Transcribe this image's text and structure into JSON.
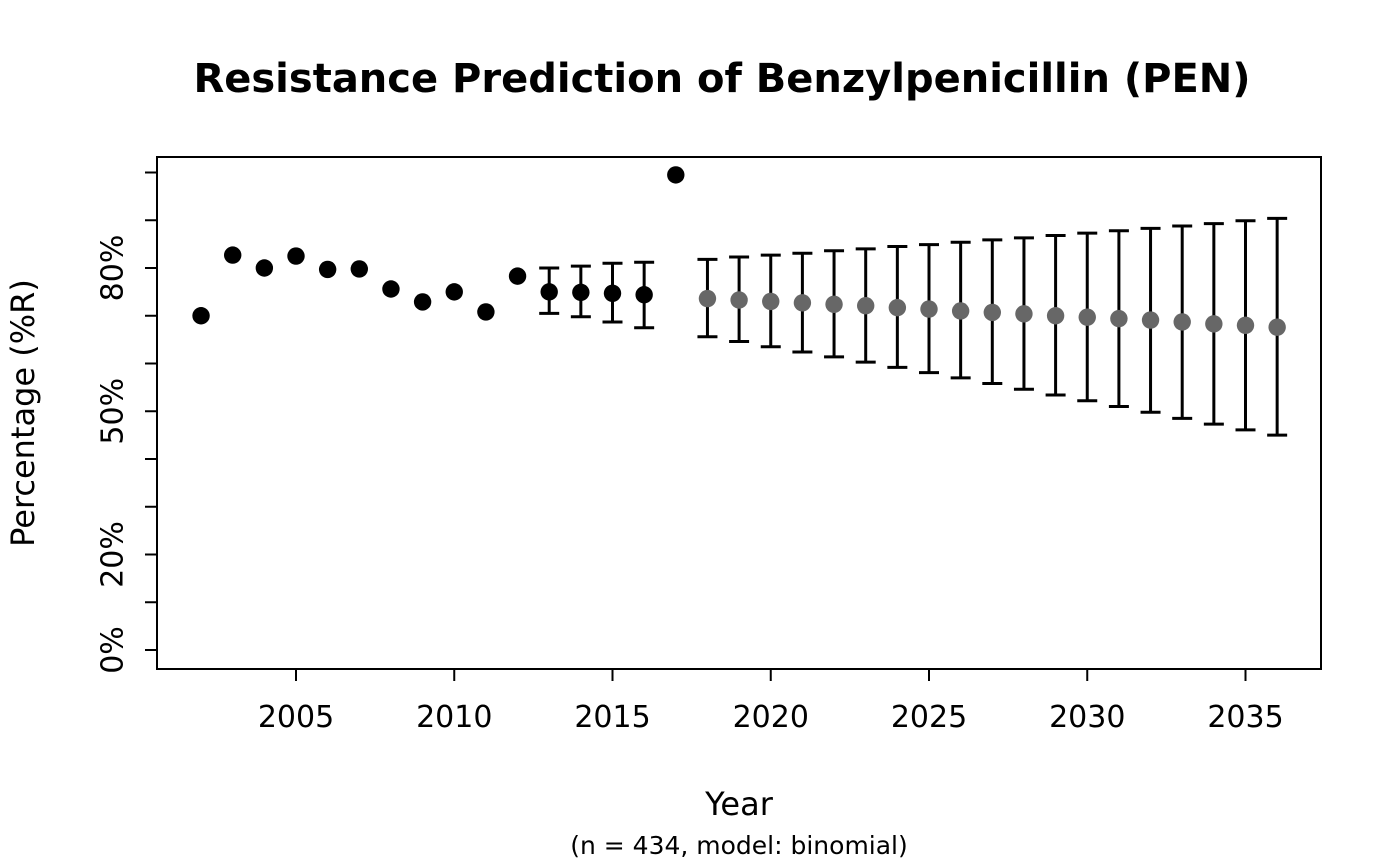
{
  "chart_data": {
    "type": "scatter",
    "title": "Resistance Prediction of Benzylpenicillin (PEN)",
    "xlabel": "Year",
    "x_sub_label": "(n = 434, model: binomial)",
    "ylabel": "Percentage (%R)",
    "xlim": [
      2000.6,
      2037.4
    ],
    "ylim": [
      -4,
      104
    ],
    "grid": false,
    "legend_position": "none",
    "x_ticks": [
      2005,
      2010,
      2015,
      2020,
      2025,
      2030,
      2035
    ],
    "y_minor_tick_step": 10,
    "y_labeled_ticks": [
      {
        "value": 0,
        "label": "0%"
      },
      {
        "value": 20,
        "label": "20%"
      },
      {
        "value": 50,
        "label": "50%"
      },
      {
        "value": 80,
        "label": "80%"
      }
    ],
    "colors": {
      "observed_point": "#000000",
      "predicted_point": "#676767",
      "error_bar": "#000000",
      "axis": "#000000",
      "background": "#ffffff"
    },
    "series": [
      {
        "name": "observed",
        "role": "history",
        "color": "#000000",
        "points": [
          {
            "year": 2002,
            "value": 70.0
          },
          {
            "year": 2003,
            "value": 82.7
          },
          {
            "year": 2004,
            "value": 80.0
          },
          {
            "year": 2005,
            "value": 82.5
          },
          {
            "year": 2006,
            "value": 79.7
          },
          {
            "year": 2007,
            "value": 79.8
          },
          {
            "year": 2008,
            "value": 75.6
          },
          {
            "year": 2009,
            "value": 72.9
          },
          {
            "year": 2010,
            "value": 75.0
          },
          {
            "year": 2011,
            "value": 70.8
          },
          {
            "year": 2012,
            "value": 78.3
          },
          {
            "year": 2013,
            "value": 75.0,
            "ci_low": 70.5,
            "ci_high": 80.0
          },
          {
            "year": 2014,
            "value": 74.9,
            "ci_low": 69.8,
            "ci_high": 80.4
          },
          {
            "year": 2015,
            "value": 74.7,
            "ci_low": 68.7,
            "ci_high": 81.0
          },
          {
            "year": 2016,
            "value": 74.4,
            "ci_low": 67.5,
            "ci_high": 81.2
          },
          {
            "year": 2017,
            "value": 99.5
          }
        ]
      },
      {
        "name": "predicted",
        "role": "forecast",
        "color": "#676767",
        "points": [
          {
            "year": 2018,
            "value": 73.6,
            "ci_low": 65.6,
            "ci_high": 81.8
          },
          {
            "year": 2019,
            "value": 73.3,
            "ci_low": 64.6,
            "ci_high": 82.3
          },
          {
            "year": 2020,
            "value": 73.0,
            "ci_low": 63.5,
            "ci_high": 82.7
          },
          {
            "year": 2021,
            "value": 72.7,
            "ci_low": 62.4,
            "ci_high": 83.1
          },
          {
            "year": 2022,
            "value": 72.4,
            "ci_low": 61.4,
            "ci_high": 83.6
          },
          {
            "year": 2023,
            "value": 72.1,
            "ci_low": 60.3,
            "ci_high": 84.0
          },
          {
            "year": 2024,
            "value": 71.7,
            "ci_low": 59.2,
            "ci_high": 84.5
          },
          {
            "year": 2025,
            "value": 71.4,
            "ci_low": 58.1,
            "ci_high": 84.9
          },
          {
            "year": 2026,
            "value": 71.0,
            "ci_low": 57.0,
            "ci_high": 85.4
          },
          {
            "year": 2027,
            "value": 70.7,
            "ci_low": 55.8,
            "ci_high": 85.9
          },
          {
            "year": 2028,
            "value": 70.4,
            "ci_low": 54.6,
            "ci_high": 86.3
          },
          {
            "year": 2029,
            "value": 70.0,
            "ci_low": 53.4,
            "ci_high": 86.8
          },
          {
            "year": 2030,
            "value": 69.7,
            "ci_low": 52.2,
            "ci_high": 87.3
          },
          {
            "year": 2031,
            "value": 69.4,
            "ci_low": 51.0,
            "ci_high": 87.8
          },
          {
            "year": 2032,
            "value": 69.1,
            "ci_low": 49.8,
            "ci_high": 88.3
          },
          {
            "year": 2033,
            "value": 68.7,
            "ci_low": 48.5,
            "ci_high": 88.8
          },
          {
            "year": 2034,
            "value": 68.3,
            "ci_low": 47.3,
            "ci_high": 89.3
          },
          {
            "year": 2035,
            "value": 68.0,
            "ci_low": 46.1,
            "ci_high": 89.9
          },
          {
            "year": 2036,
            "value": 67.6,
            "ci_low": 45.0,
            "ci_high": 90.4
          }
        ]
      }
    ]
  }
}
